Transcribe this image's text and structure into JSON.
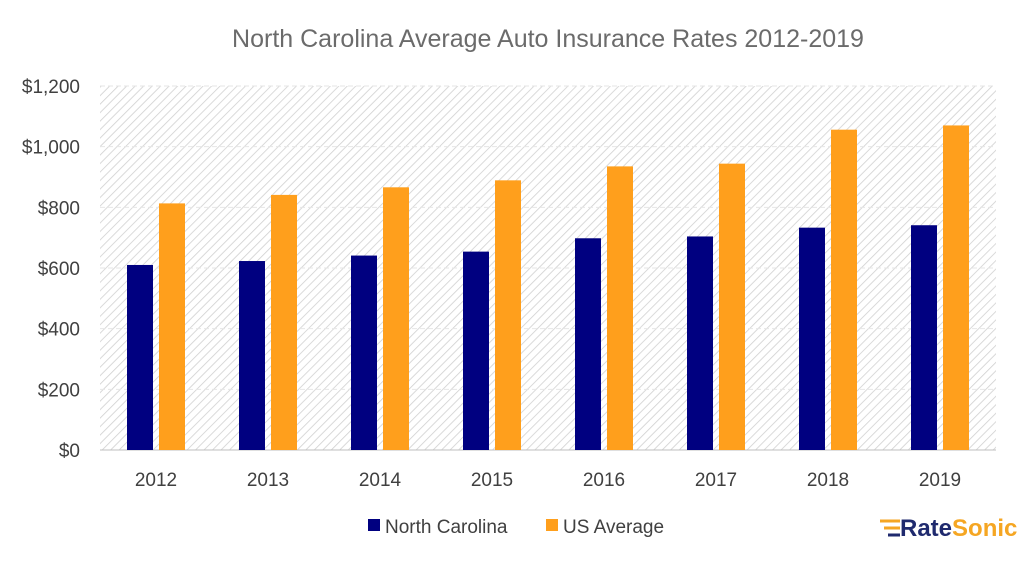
{
  "chart_data": {
    "type": "bar",
    "title": "North Carolina Average Auto Insurance Rates 2012-2019",
    "categories": [
      "2012",
      "2013",
      "2014",
      "2015",
      "2016",
      "2017",
      "2018",
      "2019"
    ],
    "series": [
      {
        "name": "North Carolina",
        "color": "#000080",
        "values": [
          610,
          623,
          641,
          654,
          698,
          704,
          733,
          741
        ]
      },
      {
        "name": "US Average",
        "color": "#FF9F1C",
        "values": [
          813,
          841,
          866,
          889,
          935,
          944,
          1056,
          1070
        ]
      }
    ],
    "ylim": [
      0,
      1200
    ],
    "yticks": [
      0,
      200,
      400,
      600,
      800,
      1000,
      1200
    ],
    "ytick_labels": [
      "$0",
      "$200",
      "$400",
      "$600",
      "$800",
      "$1,000",
      "$1,200"
    ],
    "xlabel": "",
    "ylabel": "",
    "grid": true,
    "legend_position": "bottom"
  },
  "logo": {
    "text_part1": "Rate",
    "text_part2": "Sonic",
    "color1": "#1F2A6E",
    "color2": "#F5A623"
  }
}
